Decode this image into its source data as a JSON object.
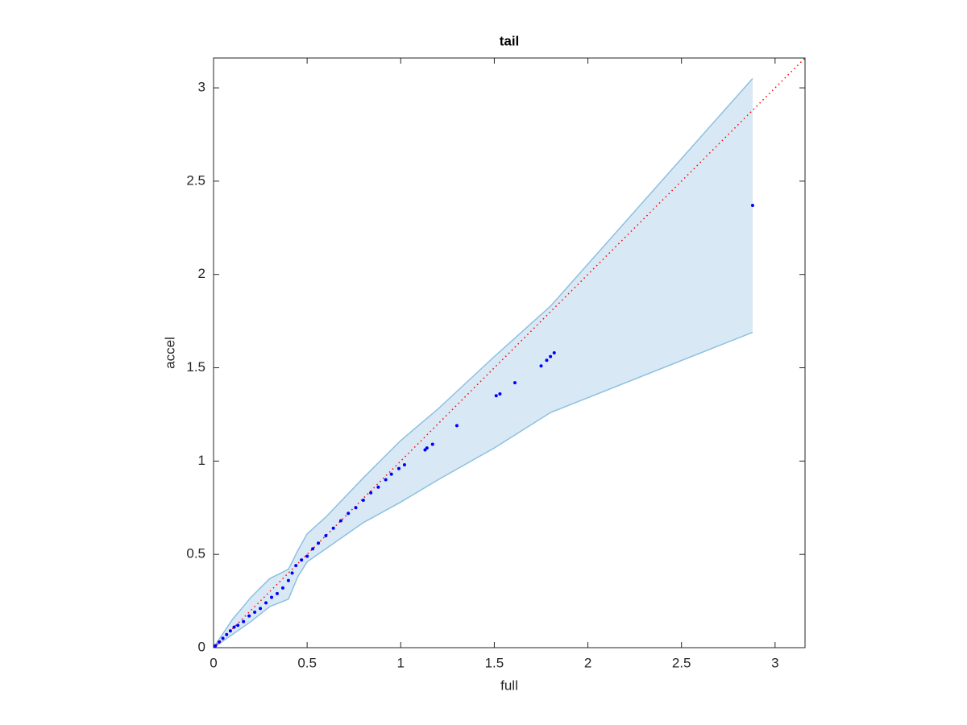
{
  "chart_data": {
    "type": "scatter",
    "title": "tail",
    "x_label": "full",
    "y_label": "accel",
    "xlim": [
      0,
      3.16
    ],
    "ylim": [
      0,
      3.16
    ],
    "xticks": [
      0,
      0.5,
      1,
      1.5,
      2,
      2.5,
      3
    ],
    "yticks": [
      0,
      0.5,
      1,
      1.5,
      2,
      2.5,
      3
    ],
    "series": [
      {
        "color": "#0000ff",
        "x": [
          0.01,
          0.03,
          0.05,
          0.07,
          0.09,
          0.11,
          0.13,
          0.16,
          0.19,
          0.22,
          0.25,
          0.28,
          0.31,
          0.34,
          0.37,
          0.4,
          0.42,
          0.44,
          0.47,
          0.5,
          0.53,
          0.56,
          0.6,
          0.64,
          0.68,
          0.72,
          0.76,
          0.8,
          0.84,
          0.88,
          0.92,
          0.95,
          0.99,
          1.02,
          1.13,
          1.14,
          1.17,
          1.3,
          1.51,
          1.53,
          1.61,
          1.75,
          1.78,
          1.8,
          1.82,
          2.88
        ],
        "values": [
          0.01,
          0.03,
          0.05,
          0.07,
          0.09,
          0.11,
          0.12,
          0.14,
          0.17,
          0.19,
          0.21,
          0.24,
          0.27,
          0.29,
          0.32,
          0.36,
          0.4,
          0.44,
          0.47,
          0.49,
          0.53,
          0.56,
          0.6,
          0.64,
          0.68,
          0.72,
          0.75,
          0.79,
          0.83,
          0.86,
          0.9,
          0.93,
          0.96,
          0.98,
          1.06,
          1.07,
          1.09,
          1.19,
          1.35,
          1.36,
          1.42,
          1.51,
          1.54,
          1.56,
          1.58,
          2.37
        ]
      }
    ],
    "band": {
      "color": "#d9e8f5",
      "edge_color": "#8cc0e0",
      "x": [
        0,
        0.1,
        0.2,
        0.3,
        0.4,
        0.45,
        0.5,
        0.6,
        0.8,
        1.0,
        1.2,
        1.5,
        1.8,
        2.88
      ],
      "upper": [
        0,
        0.15,
        0.27,
        0.37,
        0.42,
        0.52,
        0.61,
        0.7,
        0.91,
        1.11,
        1.28,
        1.56,
        1.83,
        3.05
      ],
      "lower": [
        0,
        0.07,
        0.14,
        0.22,
        0.26,
        0.38,
        0.46,
        0.53,
        0.67,
        0.78,
        0.9,
        1.07,
        1.26,
        1.69
      ]
    },
    "reference_line_color": "#ff0000"
  }
}
